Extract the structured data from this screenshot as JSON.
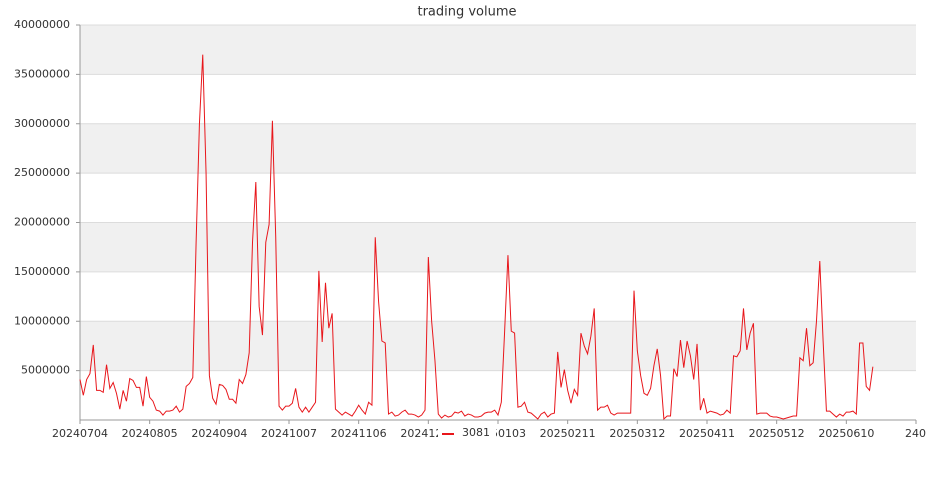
{
  "chart_data": {
    "type": "line",
    "title": "trading volume",
    "xlim": [
      0,
      252
    ],
    "xticks": [
      {
        "value": 0,
        "label": "20240704"
      },
      {
        "value": 21,
        "label": "20240805"
      },
      {
        "value": 42,
        "label": "20240904"
      },
      {
        "value": 63,
        "label": "20241007"
      },
      {
        "value": 84,
        "label": "20241106"
      },
      {
        "value": 105,
        "label": "20241205"
      },
      {
        "value": 126,
        "label": "20250103"
      },
      {
        "value": 147,
        "label": "20250211"
      },
      {
        "value": 168,
        "label": "20250312"
      },
      {
        "value": 189,
        "label": "20250411"
      },
      {
        "value": 210,
        "label": "20250512"
      },
      {
        "value": 231,
        "label": "20250610"
      },
      {
        "value": 252,
        "label": "240"
      }
    ],
    "ylim": [
      0,
      40000000
    ],
    "yticks": [
      5000000,
      10000000,
      15000000,
      20000000,
      25000000,
      30000000,
      35000000,
      40000000
    ],
    "grid": true,
    "series": [
      {
        "name": "3081",
        "color": "#e8161b",
        "values": [
          4100000,
          2500000,
          4100000,
          4700000,
          7600000,
          3000000,
          3000000,
          2800000,
          5600000,
          3200000,
          3800000,
          2700000,
          1100000,
          3000000,
          1900000,
          4200000,
          4000000,
          3300000,
          3300000,
          1400000,
          4400000,
          2300000,
          1900000,
          1000000,
          900000,
          500000,
          900000,
          900000,
          1000000,
          1400000,
          800000,
          1100000,
          3400000,
          3700000,
          4300000,
          18000000,
          30000000,
          37000000,
          25000000,
          4500000,
          2200000,
          1600000,
          3600000,
          3500000,
          3100000,
          2100000,
          2100000,
          1700000,
          4100000,
          3700000,
          4600000,
          6800000,
          18000000,
          24100000,
          11500000,
          8600000,
          18000000,
          19800000,
          30300000,
          18500000,
          1400000,
          1000000,
          1400000,
          1400000,
          1700000,
          3200000,
          1300000,
          800000,
          1300000,
          800000,
          1300000,
          1800000,
          15100000,
          7900000,
          13900000,
          9300000,
          10800000,
          1100000,
          800000,
          500000,
          800000,
          600000,
          400000,
          900000,
          1500000,
          1000000,
          600000,
          1800000,
          1500000,
          18500000,
          12000000,
          8000000,
          7800000,
          600000,
          800000,
          400000,
          500000,
          800000,
          1000000,
          600000,
          600000,
          500000,
          300000,
          500000,
          1000000,
          16500000,
          10000000,
          6000000,
          600000,
          200000,
          500000,
          300000,
          400000,
          800000,
          700000,
          900000,
          400000,
          600000,
          500000,
          300000,
          300000,
          400000,
          700000,
          800000,
          800000,
          1000000,
          500000,
          1800000,
          9000000,
          16700000,
          9000000,
          8800000,
          1300000,
          1400000,
          1800000,
          800000,
          700000,
          400000,
          100000,
          600000,
          800000,
          300000,
          600000,
          700000,
          6900000,
          3300000,
          5100000,
          3000000,
          1700000,
          3100000,
          2500000,
          8800000,
          7500000,
          6700000,
          8500000,
          11300000,
          1000000,
          1300000,
          1300000,
          1500000,
          700000,
          500000,
          700000,
          700000,
          700000,
          700000,
          700000,
          13100000,
          7000000,
          4500000,
          2700000,
          2500000,
          3200000,
          5500000,
          7200000,
          4500000,
          100000,
          400000,
          400000,
          5200000,
          4400000,
          8100000,
          5300000,
          8000000,
          6500000,
          4100000,
          7700000,
          1000000,
          2200000,
          700000,
          900000,
          800000,
          700000,
          500000,
          600000,
          1000000,
          700000,
          6500000,
          6400000,
          7000000,
          11300000,
          7100000,
          8800000,
          9800000,
          600000,
          700000,
          700000,
          700000,
          400000,
          300000,
          300000,
          200000,
          100000,
          200000,
          300000,
          400000,
          400000,
          6300000,
          6000000,
          9300000,
          5500000,
          5800000,
          10000000,
          16100000,
          8000000,
          900000,
          900000,
          600000,
          300000,
          600000,
          400000,
          800000,
          800000,
          900000,
          600000,
          7800000,
          7800000,
          3400000,
          3000000,
          5400000
        ]
      }
    ]
  }
}
